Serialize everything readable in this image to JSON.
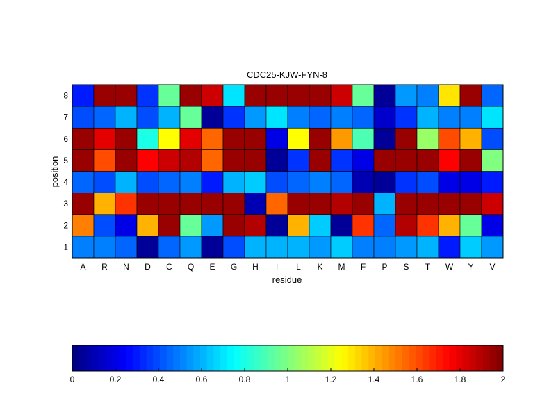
{
  "chart_data": [
    {
      "type": "heatmap",
      "title": "CDC25-KJW-FYN-8",
      "xlabel": "residue",
      "ylabel": "position",
      "x_categories": [
        "A",
        "R",
        "N",
        "D",
        "C",
        "Q",
        "E",
        "G",
        "H",
        "I",
        "L",
        "K",
        "M",
        "F",
        "P",
        "S",
        "T",
        "W",
        "Y",
        "V"
      ],
      "y_categories": [
        "1",
        "2",
        "3",
        "4",
        "5",
        "6",
        "7",
        "8"
      ],
      "clim": [
        0,
        2
      ],
      "colormap": "jet",
      "grid": true,
      "values_by_position": {
        "8": [
          0.3,
          1.95,
          1.95,
          0.35,
          0.95,
          1.95,
          1.85,
          0.7,
          1.95,
          1.95,
          1.95,
          1.95,
          1.85,
          0.95,
          0.05,
          0.55,
          0.5,
          1.3,
          1.95,
          0.45
        ],
        "7": [
          0.4,
          0.45,
          0.6,
          0.4,
          0.6,
          0.95,
          0.05,
          0.35,
          0.55,
          0.7,
          0.5,
          0.45,
          0.5,
          0.45,
          0.15,
          0.35,
          0.6,
          0.5,
          0.5,
          0.7
        ],
        "6": [
          1.95,
          1.8,
          1.95,
          0.8,
          1.25,
          1.8,
          1.55,
          1.95,
          1.95,
          0.2,
          1.25,
          1.95,
          1.45,
          0.9,
          0.05,
          1.95,
          1.05,
          1.6,
          1.4,
          0.4
        ],
        "5": [
          1.95,
          1.6,
          1.95,
          1.75,
          1.85,
          1.9,
          1.55,
          1.95,
          1.95,
          0.05,
          0.35,
          1.95,
          0.35,
          0.2,
          1.95,
          1.95,
          1.95,
          1.75,
          1.95,
          1.0
        ],
        "4": [
          0.45,
          0.4,
          0.6,
          0.4,
          0.45,
          0.5,
          0.3,
          0.6,
          0.65,
          0.4,
          0.45,
          0.5,
          0.45,
          0.1,
          0.05,
          0.35,
          0.4,
          0.2,
          0.2,
          0.3
        ],
        "3": [
          1.95,
          1.4,
          1.65,
          1.95,
          1.95,
          1.95,
          1.95,
          1.95,
          0.1,
          1.55,
          1.95,
          1.95,
          1.9,
          1.95,
          0.6,
          1.95,
          1.95,
          1.95,
          1.95,
          1.85
        ],
        "2": [
          1.5,
          0.4,
          0.2,
          1.4,
          1.95,
          0.95,
          0.55,
          1.95,
          1.9,
          0.05,
          1.4,
          0.65,
          0.05,
          1.65,
          0.45,
          1.9,
          1.65,
          1.4,
          0.95,
          0.2
        ],
        "1": [
          0.5,
          0.5,
          0.45,
          0.05,
          0.45,
          0.55,
          0.05,
          0.4,
          0.6,
          0.6,
          0.6,
          0.55,
          0.65,
          0.5,
          0.5,
          0.55,
          0.6,
          0.3,
          0.65,
          0.55
        ]
      }
    },
    {
      "type": "colorbar",
      "colormap": "jet",
      "range": [
        0,
        2
      ],
      "tick_labels": [
        "0",
        "0.2",
        "0.4",
        "0.6",
        "0.8",
        "1",
        "1.2",
        "1.4",
        "1.6",
        "1.8",
        "2"
      ]
    }
  ]
}
